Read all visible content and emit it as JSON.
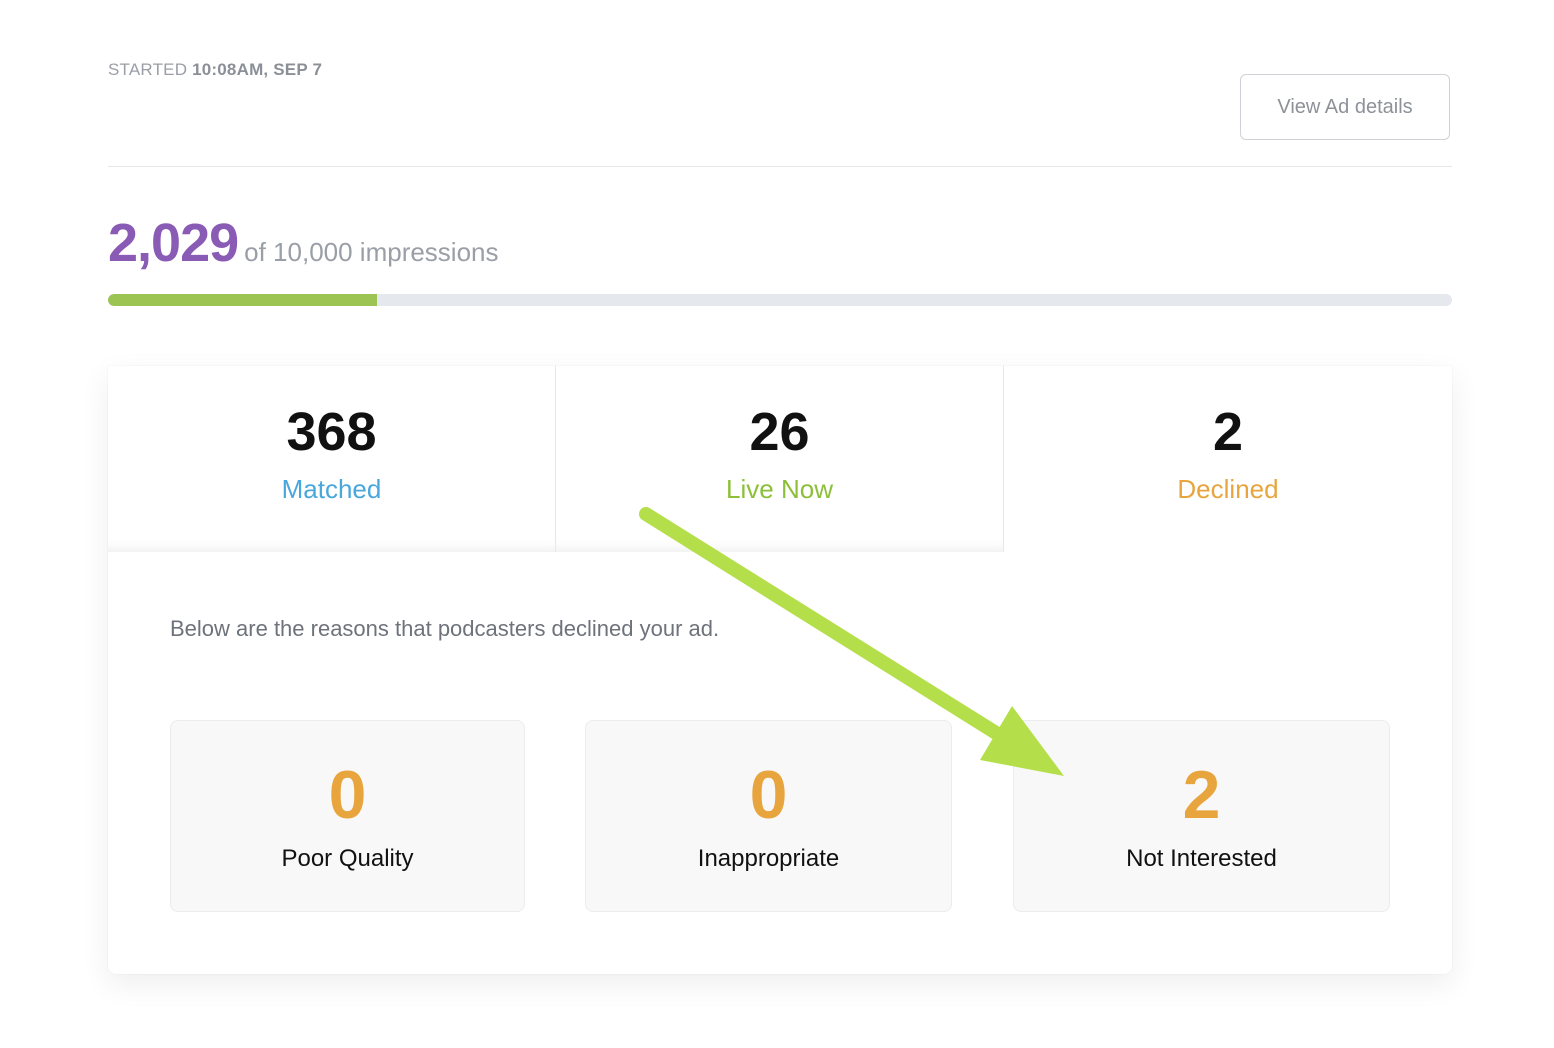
{
  "header": {
    "started_label": "STARTED",
    "started_time": "10:08AM, SEP 7",
    "view_button_label": "View Ad details"
  },
  "impressions": {
    "count": "2,029",
    "of_text": "of 10,000 impressions",
    "progress_fraction": 0.2
  },
  "stats": [
    {
      "value": "368",
      "label": "Matched",
      "color": "#4aa7dc"
    },
    {
      "value": "26",
      "label": "Live Now",
      "color": "#8dbf3a"
    },
    {
      "value": "2",
      "label": "Declined",
      "color": "#e8a53e"
    }
  ],
  "declined_panel": {
    "description": "Below are the reasons that podcasters declined your ad.",
    "reasons": [
      {
        "value": "0",
        "label": "Poor Quality"
      },
      {
        "value": "0",
        "label": "Inappropriate"
      },
      {
        "value": "2",
        "label": "Not Interested"
      }
    ]
  },
  "annotation": {
    "arrow_color": "#b5df4a"
  }
}
